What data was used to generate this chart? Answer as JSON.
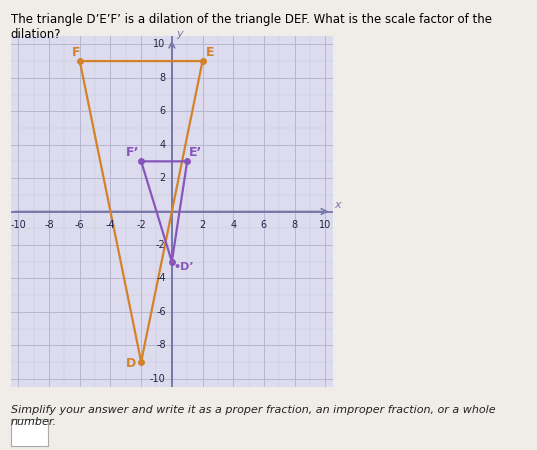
{
  "title": "The triangle D’E’F’ is a dilation of the triangle DEF. What is the scale factor of the dilation?",
  "subtitle": "Simplify your answer and write it as a proper fraction, an improper fraction, or a whole\nnumber.",
  "xlim": [
    -10.5,
    10.5
  ],
  "ylim": [
    -10.5,
    10.5
  ],
  "xticks": [
    -10,
    -8,
    -6,
    -4,
    -2,
    2,
    4,
    6,
    8,
    10
  ],
  "yticks": [
    -10,
    -8,
    -6,
    -4,
    -2,
    2,
    4,
    6,
    8,
    10
  ],
  "triangle_DEF": {
    "D": [
      -2,
      -9
    ],
    "E": [
      2,
      9
    ],
    "F": [
      -6,
      9
    ],
    "color": "#D4822A",
    "linewidth": 1.6
  },
  "triangle_D1E1F1": {
    "D1": [
      0,
      -3
    ],
    "E1": [
      1,
      3
    ],
    "F1": [
      -2,
      3
    ],
    "color": "#8855BB",
    "linewidth": 1.6
  },
  "grid_color": "#B0B0CC",
  "grid_minor_color": "#C8C8DC",
  "axis_color": "#7777AA",
  "plot_bg": "#DCDCEe",
  "page_bg": "#F0EDE8",
  "dot_color_DEF": "#D4822A",
  "dot_color_D1E1F1": "#8855BB",
  "dot_size": 4,
  "tick_fontsize": 7,
  "label_fontsize": 9,
  "title_fontsize": 8.5,
  "subtitle_fontsize": 8
}
